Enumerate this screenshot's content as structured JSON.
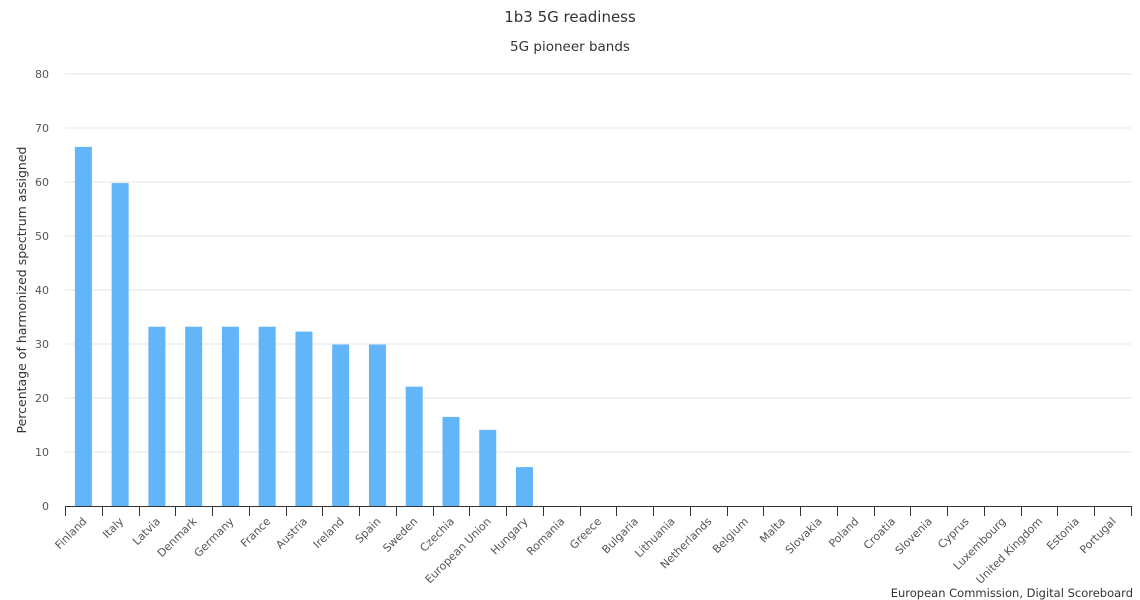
{
  "chart_data": {
    "type": "bar",
    "title": "1b3 5G readiness",
    "subtitle": "5G pioneer bands",
    "xlabel": "",
    "ylabel": "Percentage of harmonized spectrum assigned",
    "ylim": [
      0,
      80
    ],
    "yticks": [
      0,
      10,
      20,
      30,
      40,
      50,
      60,
      70,
      80
    ],
    "grid": true,
    "bar_color": "#63b5f9",
    "categories": [
      "Finland",
      "Italy",
      "Latvia",
      "Denmark",
      "Germany",
      "France",
      "Austria",
      "Ireland",
      "Spain",
      "Sweden",
      "Czechia",
      "European Union",
      "Hungary",
      "Romania",
      "Greece",
      "Bulgaria",
      "Lithuania",
      "Netherlands",
      "Belgium",
      "Malta",
      "Slovakia",
      "Poland",
      "Croatia",
      "Slovenia",
      "Cyprus",
      "Luxembourg",
      "United Kingdom",
      "Estonia",
      "Portugal"
    ],
    "values": [
      66.5,
      59.8,
      33.2,
      33.2,
      33.2,
      33.2,
      32.3,
      29.9,
      29.9,
      22.1,
      16.5,
      14.1,
      7.2,
      0,
      0,
      0,
      0,
      0,
      0,
      0,
      0,
      0,
      0,
      0,
      0,
      0,
      0,
      0,
      0
    ]
  },
  "credit": "European Commission, Digital Scoreboard"
}
